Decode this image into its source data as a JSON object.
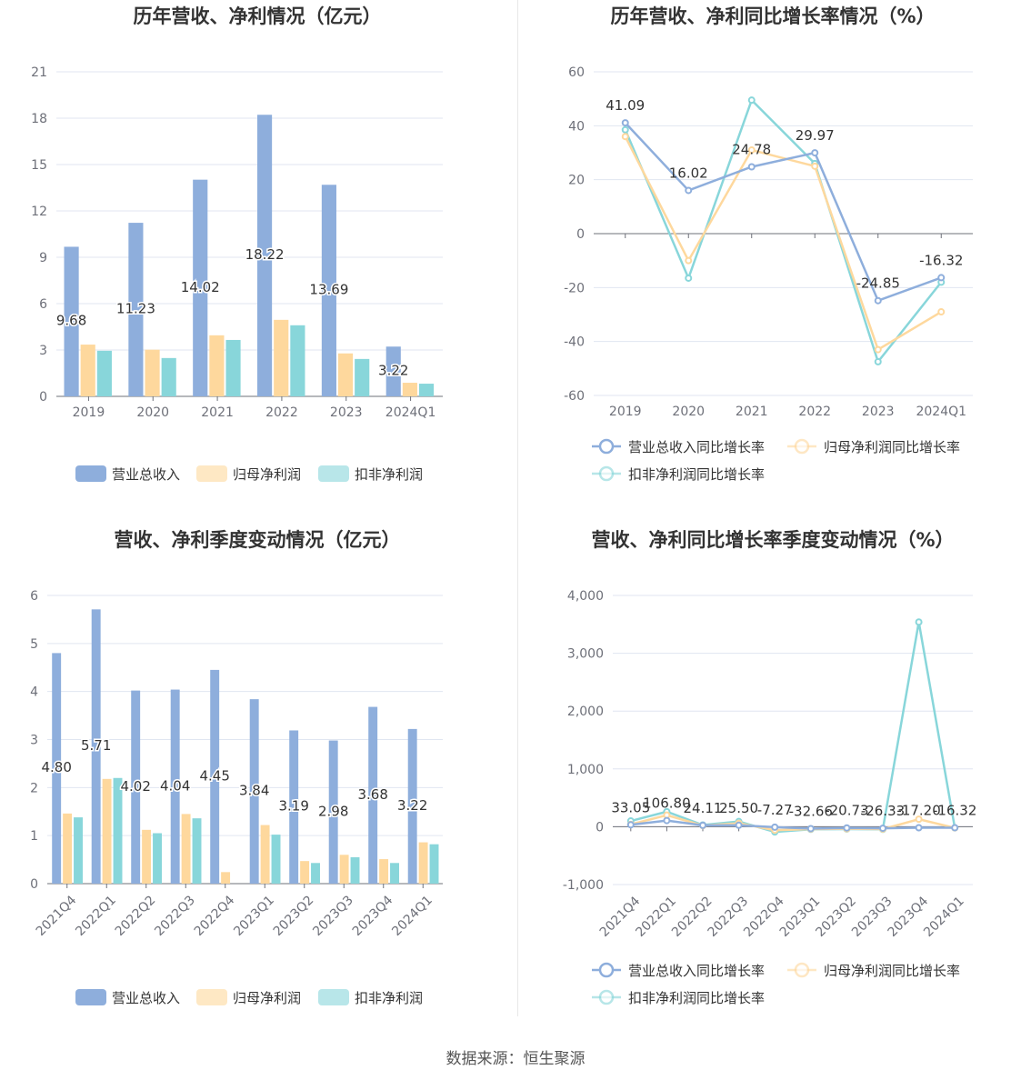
{
  "source_text": "数据来源：恒生聚源",
  "colors": {
    "revenue": "#8eaedc",
    "net_profit": "#fed89d",
    "deducted_net_profit": "#88d6da",
    "axis": "#6e7079",
    "grid": "#e0e6f1"
  },
  "chart_data": [
    {
      "type": "bar",
      "title": "历年营收、净利情况（亿元）",
      "categories": [
        "2019",
        "2020",
        "2021",
        "2022",
        "2023",
        "2024Q1"
      ],
      "ylim": [
        0,
        21
      ],
      "yticks": [
        "0",
        "3",
        "6",
        "9",
        "12",
        "15",
        "18",
        "21"
      ],
      "grid": true,
      "legend_position": "bottom",
      "series": [
        {
          "name": "营业总收入",
          "values": [
            9.68,
            11.23,
            14.02,
            18.22,
            13.69,
            3.22
          ],
          "labels": [
            "9.68",
            "11.23",
            "14.02",
            "18.22",
            "13.69",
            "3.22"
          ]
        },
        {
          "name": "归母净利润",
          "values": [
            3.35,
            3.02,
            3.95,
            4.95,
            2.78,
            0.88
          ]
        },
        {
          "name": "扣非净利润",
          "values": [
            2.95,
            2.48,
            3.65,
            4.6,
            2.42,
            0.82
          ]
        }
      ]
    },
    {
      "type": "line",
      "title": "历年营收、净利同比增长率情况（%）",
      "categories": [
        "2019",
        "2020",
        "2021",
        "2022",
        "2023",
        "2024Q1"
      ],
      "ylim": [
        -60,
        60
      ],
      "yticks": [
        "-60",
        "-40",
        "-20",
        "0",
        "20",
        "40",
        "60"
      ],
      "grid": true,
      "legend_position": "bottom",
      "series": [
        {
          "name": "营业总收入同比增长率",
          "values": [
            41.09,
            16.02,
            24.78,
            29.97,
            -24.85,
            -16.32
          ],
          "labels": [
            "41.09",
            "16.02",
            "24.78",
            "29.97",
            "-24.85",
            "-16.32"
          ]
        },
        {
          "name": "归母净利润同比增长率",
          "values": [
            36,
            -10,
            31,
            25,
            -43,
            -29
          ]
        },
        {
          "name": "扣非净利润同比增长率",
          "values": [
            38.5,
            -16.5,
            49.5,
            26,
            -47.5,
            -18
          ]
        }
      ]
    },
    {
      "type": "bar",
      "title": "营收、净利季度变动情况（亿元）",
      "categories": [
        "2021Q4",
        "2022Q1",
        "2022Q2",
        "2022Q3",
        "2022Q4",
        "2023Q1",
        "2023Q2",
        "2023Q3",
        "2023Q4",
        "2024Q1"
      ],
      "ylim": [
        0,
        6
      ],
      "yticks": [
        "0",
        "1",
        "2",
        "3",
        "4",
        "5",
        "6"
      ],
      "grid": true,
      "legend_position": "bottom",
      "series": [
        {
          "name": "营业总收入",
          "values": [
            4.8,
            5.71,
            4.02,
            4.04,
            4.45,
            3.84,
            3.19,
            2.98,
            3.68,
            3.22
          ],
          "labels": [
            "4.80",
            "5.71",
            "4.02",
            "4.04",
            "4.45",
            "3.84",
            "3.19",
            "2.98",
            "3.68",
            "3.22"
          ]
        },
        {
          "name": "归母净利润",
          "values": [
            1.46,
            2.18,
            1.12,
            1.45,
            0.24,
            1.22,
            0.47,
            0.6,
            0.51,
            0.86
          ]
        },
        {
          "name": "扣非净利润",
          "values": [
            1.38,
            2.2,
            1.05,
            1.36,
            0.0,
            1.02,
            0.43,
            0.55,
            0.43,
            0.82
          ]
        }
      ]
    },
    {
      "type": "line",
      "title": "营收、净利同比增长率季度变动情况（%）",
      "categories": [
        "2021Q4",
        "2022Q1",
        "2022Q2",
        "2022Q3",
        "2022Q4",
        "2023Q1",
        "2023Q2",
        "2023Q3",
        "2023Q4",
        "2024Q1"
      ],
      "ylim": [
        -1000,
        4000
      ],
      "yticks": [
        "-1,000",
        "0",
        "1,000",
        "2,000",
        "3,000",
        "4,000"
      ],
      "grid": true,
      "legend_position": "bottom",
      "series": [
        {
          "name": "营业总收入同比增长率",
          "values": [
            33.05,
            106.8,
            24.11,
            25.5,
            -7.27,
            -32.66,
            -20.73,
            -26.33,
            -17.2,
            -16.32
          ],
          "labels": [
            "33.05",
            "106.80",
            "24.11",
            "25.50",
            "-7.27",
            "-32.66",
            "-20.73",
            "-26.33",
            "-17.20",
            "-16.32"
          ]
        },
        {
          "name": "归母净利润同比增长率",
          "values": [
            40,
            200,
            20,
            60,
            -60,
            -40,
            -35,
            -40,
            130,
            -20
          ]
        },
        {
          "name": "扣非净利润同比增长率",
          "values": [
            100,
            260,
            30,
            90,
            -90,
            -45,
            -40,
            -45,
            3540,
            -20
          ]
        }
      ]
    }
  ]
}
